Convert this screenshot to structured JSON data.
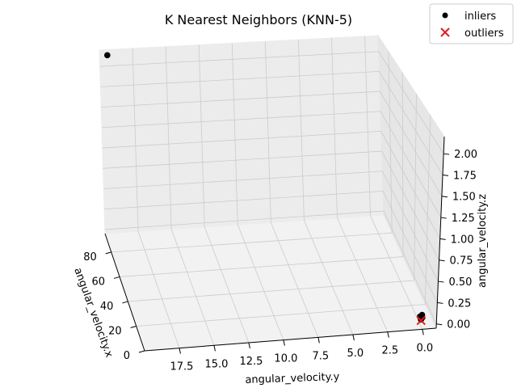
{
  "chart_data": {
    "type": "scatter",
    "projection": "3d",
    "title": "K Nearest Neighbors (KNN-5)",
    "xlabel": "angular_velocity.x",
    "ylabel": "angular_velocity.y",
    "zlabel": "angular_velocity.z",
    "xlim": [
      0,
      95
    ],
    "ylim": [
      -1,
      20
    ],
    "zlim": [
      -0.05,
      2.2
    ],
    "x_ticks": [
      "0",
      "20",
      "40",
      "60",
      "80"
    ],
    "x_tick_values": [
      0,
      20,
      40,
      60,
      80
    ],
    "y_ticks": [
      "0.0",
      "2.5",
      "5.0",
      "7.5",
      "10.0",
      "12.5",
      "15.0",
      "17.5"
    ],
    "y_tick_values": [
      0,
      2.5,
      5,
      7.5,
      10,
      12.5,
      15,
      17.5
    ],
    "z_ticks": [
      "0.00",
      "0.25",
      "0.50",
      "0.75",
      "1.00",
      "1.25",
      "1.50",
      "1.75",
      "2.00"
    ],
    "z_tick_values": [
      0,
      0.25,
      0.5,
      0.75,
      1,
      1.25,
      1.5,
      1.75,
      2
    ],
    "grid": true,
    "legend_position": "top-right",
    "series": [
      {
        "name": "inliers",
        "marker": "circle",
        "color": "#000000",
        "points": [
          {
            "x": 92,
            "y": 19.5,
            "z": 2.2
          },
          {
            "x": 0.5,
            "y": 0.1,
            "z": 0.06
          },
          {
            "x": 0.3,
            "y": 0.2,
            "z": 0.1
          },
          {
            "x": 0.7,
            "y": 0.0,
            "z": 0.08
          },
          {
            "x": 0.2,
            "y": 0.05,
            "z": 0.12
          }
        ]
      },
      {
        "name": "outliers",
        "marker": "x",
        "color": "#e41a1c",
        "points": [
          {
            "x": 0.4,
            "y": 0.1,
            "z": 0.05
          }
        ]
      }
    ]
  }
}
